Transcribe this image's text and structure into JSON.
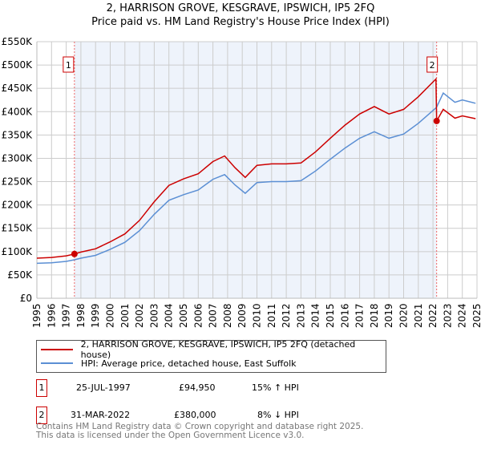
{
  "chart_data": {
    "type": "line",
    "title": "2, HARRISON GROVE, KESGRAVE, IPSWICH, IP5 2FQ",
    "subtitle": "Price paid vs. HM Land Registry's House Price Index (HPI)",
    "xlim": [
      1995,
      2025
    ],
    "ylim": [
      0,
      550000
    ],
    "y_ticks": [
      {
        "v": 0,
        "label": "£0"
      },
      {
        "v": 50000,
        "label": "£50K"
      },
      {
        "v": 100000,
        "label": "£100K"
      },
      {
        "v": 150000,
        "label": "£150K"
      },
      {
        "v": 200000,
        "label": "£200K"
      },
      {
        "v": 250000,
        "label": "£250K"
      },
      {
        "v": 300000,
        "label": "£300K"
      },
      {
        "v": 350000,
        "label": "£350K"
      },
      {
        "v": 400000,
        "label": "£400K"
      },
      {
        "v": 450000,
        "label": "£450K"
      },
      {
        "v": 500000,
        "label": "£500K"
      },
      {
        "v": 550000,
        "label": "£550K"
      }
    ],
    "x_ticks": [
      "1995",
      "1996",
      "1997",
      "1998",
      "1999",
      "2000",
      "2001",
      "2002",
      "2003",
      "2004",
      "2005",
      "2006",
      "2007",
      "2008",
      "2009",
      "2010",
      "2011",
      "2012",
      "2013",
      "2014",
      "2015",
      "2016",
      "2017",
      "2018",
      "2019",
      "2020",
      "2021",
      "2022",
      "2023",
      "2024",
      "2025"
    ],
    "grid": true,
    "series": [
      {
        "name": "2, HARRISON GROVE, KESGRAVE, IPSWICH, IP5 2FQ (detached house)",
        "color": "#cc0000",
        "x": [
          1995,
          1996,
          1997,
          1997.56,
          1998,
          1999,
          2000,
          2001,
          2002,
          2003,
          2004,
          2005,
          2006,
          2007,
          2007.8,
          2008.5,
          2009.2,
          2010,
          2011,
          2012,
          2013,
          2014,
          2015,
          2016,
          2017,
          2018,
          2019,
          2020,
          2021,
          2022.2,
          2022.25,
          2022.7,
          2023.5,
          2024,
          2024.9
        ],
        "y": [
          86000,
          87500,
          91000,
          94950,
          99000,
          106000,
          121000,
          138000,
          167000,
          207000,
          242000,
          256000,
          267000,
          293000,
          305000,
          280000,
          259000,
          285000,
          288000,
          288000,
          290000,
          314000,
          343000,
          371000,
          395000,
          411000,
          395000,
          405000,
          432000,
          470000,
          380000,
          405000,
          386000,
          391000,
          385000
        ]
      },
      {
        "name": "HPI: Average price, detached house, East Suffolk",
        "color": "#5b8fd4",
        "x": [
          1995,
          1996,
          1997,
          1997.56,
          1998,
          1999,
          2000,
          2001,
          2002,
          2003,
          2004,
          2005,
          2006,
          2007,
          2007.8,
          2008.5,
          2009.2,
          2010,
          2011,
          2012,
          2013,
          2014,
          2015,
          2016,
          2017,
          2018,
          2019,
          2020,
          2021,
          2022.2,
          2022.25,
          2022.7,
          2023.5,
          2024,
          2024.9
        ],
        "y": [
          75000,
          76000,
          79000,
          82500,
          86000,
          92000,
          105000,
          120000,
          145000,
          180000,
          210000,
          222000,
          232000,
          255000,
          265000,
          243000,
          225000,
          248000,
          250000,
          250000,
          252000,
          273000,
          298000,
          322000,
          343000,
          357000,
          343000,
          352000,
          375000,
          408000,
          410000,
          440000,
          420000,
          425000,
          418000
        ]
      }
    ],
    "sales": [
      {
        "id": "1",
        "x": 1997.56,
        "y": 94950,
        "date": "25-JUL-1997",
        "price": "£94,950",
        "hpi": "15% ↑ HPI"
      },
      {
        "id": "2",
        "x": 2022.25,
        "y": 380000,
        "date": "31-MAR-2022",
        "price": "£380,000",
        "hpi": "8% ↓ HPI"
      }
    ],
    "legend_position": "below"
  },
  "footer": {
    "line1": "Contains HM Land Registry data © Crown copyright and database right 2025.",
    "line2": "This data is licensed under the Open Government Licence v3.0."
  }
}
